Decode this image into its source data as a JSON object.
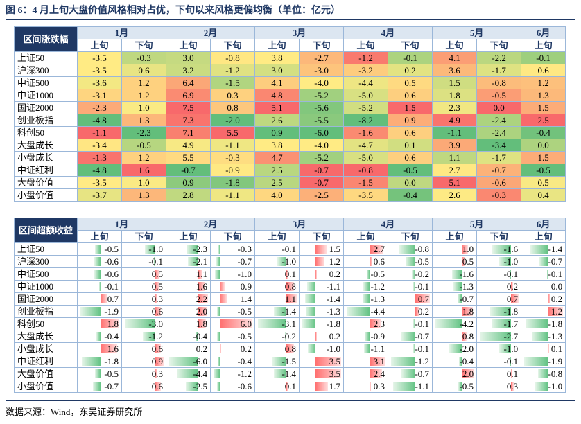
{
  "title": "图 6：4 月上旬大盘价值风格相对占优，下旬以来风格更偏均衡（单位：亿元）",
  "tables": [
    {
      "header": "区间涨跌幅",
      "style": "heatmap",
      "months": [
        "1月",
        "2月",
        "3月",
        "4月",
        "5月",
        "6月"
      ],
      "sub": [
        "上旬",
        "下旬",
        "上旬",
        "下旬",
        "上旬",
        "下旬",
        "上旬",
        "下旬",
        "上旬",
        "下旬",
        "上旬"
      ],
      "rows": [
        {
          "label": "上证50",
          "cells": [
            "-3.5",
            "-0.3",
            "3.0",
            "-0.8",
            "3.8",
            "-2.7",
            "-1.2",
            "-0.1",
            "4.1",
            "-2.2",
            "-0.1"
          ]
        },
        {
          "label": "沪深300",
          "cells": [
            "-3.5",
            "0.6",
            "3.2",
            "-1.2",
            "3.0",
            "-3.0",
            "-3.2",
            "0.2",
            "3.6",
            "-1.7",
            "0.6"
          ]
        },
        {
          "label": "中证500",
          "cells": [
            "-3.6",
            "1.2",
            "6.4",
            "-1.5",
            "4.1",
            "-4.0",
            "-4.4",
            "0.5",
            "1.5",
            "-0.8",
            "1.2"
          ]
        },
        {
          "label": "中证1000",
          "cells": [
            "-3.1",
            "1.2",
            "6.9",
            "0.3",
            "4.8",
            "-5.2",
            "-5.0",
            "0.6",
            "1.8",
            "-0.5",
            "1.3"
          ]
        },
        {
          "label": "国证2000",
          "cells": [
            "-2.3",
            "1.0",
            "7.5",
            "0.8",
            "5.1",
            "-5.6",
            "-5.2",
            "1.5",
            "2.3",
            "0.0",
            "1.5"
          ]
        },
        {
          "label": "创业板指",
          "cells": [
            "-4.8",
            "1.3",
            "7.3",
            "-2.0",
            "2.6",
            "-5.5",
            "-8.2",
            "0.9",
            "4.9",
            "-2.4",
            "2.5"
          ]
        },
        {
          "label": "科创50",
          "cells": [
            "-1.1",
            "-2.3",
            "7.1",
            "5.5",
            "0.9",
            "-6.0",
            "-1.6",
            "0.6",
            "-1.1",
            "-2.4",
            "-0.4"
          ]
        },
        {
          "label": "大盘成长",
          "cells": [
            "-3.4",
            "-0.5",
            "4.9",
            "-1.1",
            "3.8",
            "-4.0",
            "-4.7",
            "0.1",
            "3.9",
            "-3.4",
            "0.0"
          ]
        },
        {
          "label": "小盘成长",
          "cells": [
            "-1.3",
            "1.2",
            "5.5",
            "-0.3",
            "4.7",
            "-5.2",
            "-5.0",
            "0.6",
            "1.1",
            "-1.7",
            "1.5"
          ]
        },
        {
          "label": "中证红利",
          "cells": [
            "-4.8",
            "1.6",
            "-0.7",
            "-0.9",
            "2.5",
            "-0.7",
            "-0.8",
            "-0.5",
            "2.7",
            "-0.7",
            "-0.5"
          ]
        },
        {
          "label": "大盘价值",
          "cells": [
            "-3.5",
            "1.0",
            "0.9",
            "-1.8",
            "2.5",
            "-0.7",
            "-1.5",
            "0.0",
            "5.1",
            "-0.6",
            "0.5"
          ]
        },
        {
          "label": "小盘价值",
          "cells": [
            "-3.7",
            "1.3",
            "2.8",
            "-1.1",
            "4.0",
            "-2.5",
            "-3.5",
            "-0.4",
            "2.6",
            "-0.3",
            "0.4"
          ]
        }
      ]
    },
    {
      "header": "区间超额收益",
      "style": "databar",
      "months": [
        "1月",
        "2月",
        "3月",
        "4月",
        "5月",
        "6月"
      ],
      "sub": [
        "上旬",
        "下旬",
        "上旬",
        "下旬",
        "上旬",
        "下旬",
        "上旬",
        "下旬",
        "上旬",
        "下旬",
        "上旬"
      ],
      "rows": [
        {
          "label": "上证50",
          "cells": [
            "-0.5",
            "-1.0",
            "-2.3",
            "-0.3",
            "-0.1",
            "1.5",
            "2.7",
            "-0.8",
            "1.0",
            "-1.6",
            "-1.4"
          ]
        },
        {
          "label": "沪深300",
          "cells": [
            "-0.6",
            "-0.1",
            "-2.1",
            "-0.7",
            "-1.0",
            "1.2",
            "0.6",
            "-0.5",
            "0.5",
            "-1.0",
            "-0.7"
          ]
        },
        {
          "label": "中证500",
          "cells": [
            "-0.6",
            "0.5",
            "1.1",
            "-1.0",
            "0.1",
            "0.2",
            "-0.5",
            "-0.2",
            "-1.6",
            "-0.1",
            "-0.1"
          ]
        },
        {
          "label": "中证1000",
          "cells": [
            "-0.1",
            "0.5",
            "1.6",
            "0.9",
            "0.8",
            "-1.1",
            "-1.2",
            "-0.1",
            "-1.3",
            "0.2",
            "0.0"
          ]
        },
        {
          "label": "国证2000",
          "cells": [
            "0.7",
            "0.3",
            "2.2",
            "1.4",
            "1.1",
            "-1.4",
            "-1.3",
            "0.7",
            "-0.7",
            "0.7",
            "0.2"
          ]
        },
        {
          "label": "创业板指",
          "cells": [
            "-1.9",
            "0.6",
            "2.0",
            "-0.5",
            "-1.4",
            "-1.3",
            "-4.4",
            "0.2",
            "1.8",
            "-1.8",
            "1.2"
          ]
        },
        {
          "label": "科创50",
          "cells": [
            "1.8",
            "-3.0",
            "1.8",
            "6.0",
            "-3.1",
            "-1.8",
            "2.3",
            "-0.1",
            "-4.2",
            "-1.7",
            "-1.8"
          ]
        },
        {
          "label": "大盘成长",
          "cells": [
            "-0.4",
            "-1.2",
            "-0.4",
            "-0.5",
            "-0.2",
            "0.2",
            "-0.9",
            "-0.7",
            "0.8",
            "-2.7",
            "-1.3"
          ]
        },
        {
          "label": "小盘成长",
          "cells": [
            "1.6",
            "0.6",
            "0.2",
            "0.2",
            "0.8",
            "-1.0",
            "-1.1",
            "-0.1",
            "-2.0",
            "-1.0",
            "0.1"
          ]
        },
        {
          "label": "中证红利",
          "cells": [
            "-1.8",
            "0.9",
            "-6.0",
            "-0.4",
            "-1.5",
            "3.5",
            "3.1",
            "-1.2",
            "-0.4",
            "-0.1",
            "-1.9"
          ]
        },
        {
          "label": "大盘价值",
          "cells": [
            "-0.5",
            "0.3",
            "-4.4",
            "-1.2",
            "-1.4",
            "3.5",
            "2.4",
            "-0.7",
            "2.0",
            "0.1",
            "-0.8"
          ]
        },
        {
          "label": "小盘价值",
          "cells": [
            "-0.7",
            "0.6",
            "-2.5",
            "-0.6",
            "0.1",
            "1.7",
            "0.3",
            "-1.1",
            "-0.5",
            "0.3",
            "-1.0"
          ]
        }
      ]
    }
  ],
  "source": "数据来源：Wind，东吴证券研究所"
}
